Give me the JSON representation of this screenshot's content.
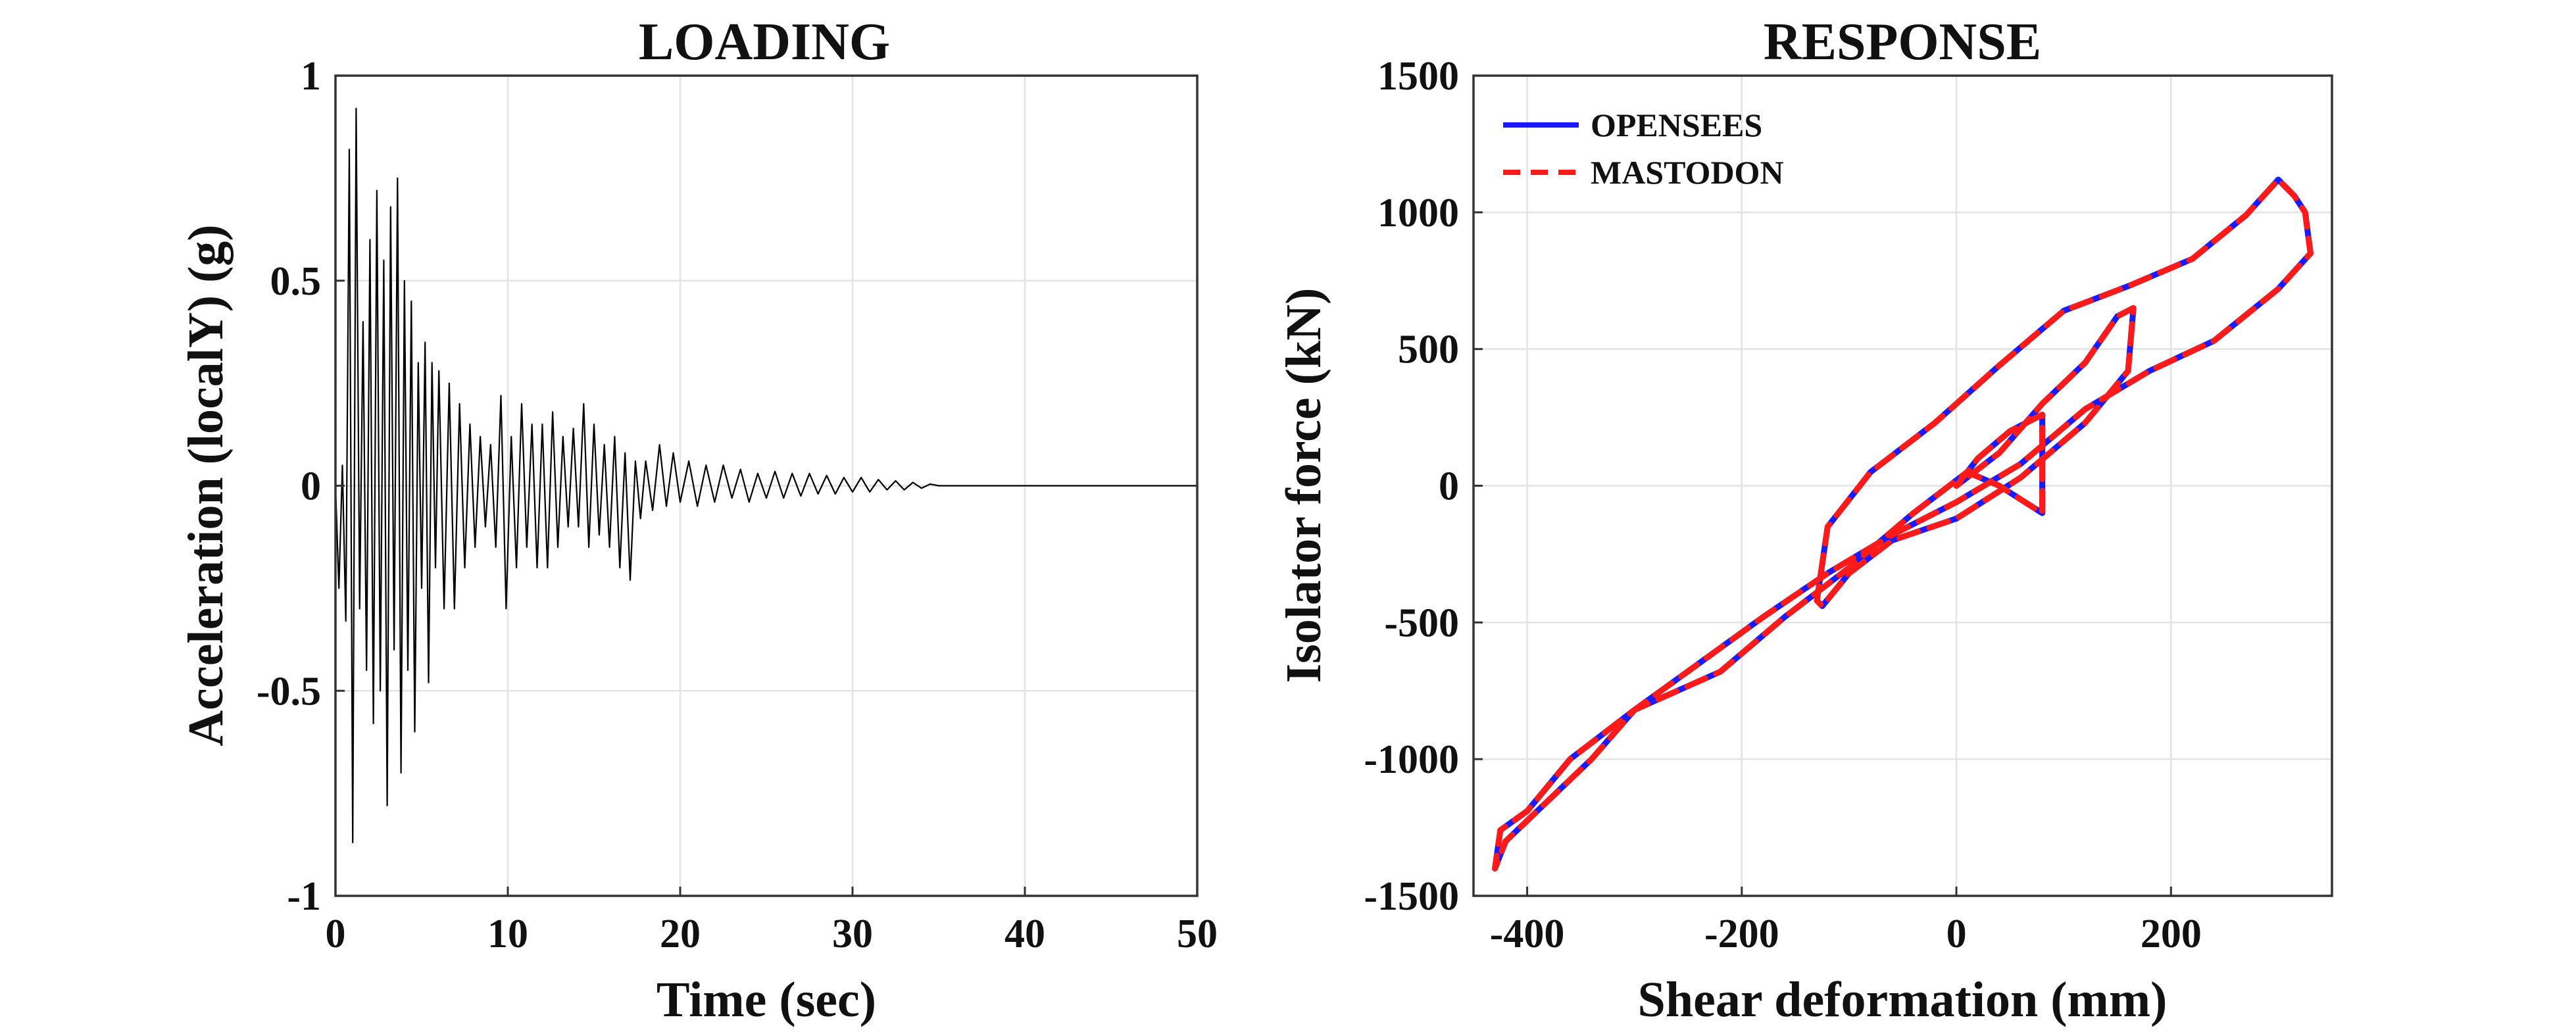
{
  "chart_data": [
    {
      "type": "line",
      "title": "LOADING",
      "xlabel": "Time (sec)",
      "ylabel": "Acceleration (localY) (g)",
      "xlim": [
        0,
        50
      ],
      "ylim": [
        -1,
        1
      ],
      "xticks": [
        0,
        10,
        20,
        30,
        40,
        50
      ],
      "xtick_labels": [
        "0",
        "10",
        "20",
        "30",
        "40",
        "50"
      ],
      "yticks": [
        -1,
        -0.5,
        0,
        0.5,
        1
      ],
      "ytick_labels": [
        "-1",
        "-0.5",
        "0",
        "0.5",
        "1"
      ],
      "grid": true,
      "series": [
        {
          "color": "#000000",
          "style": "solid",
          "x": [
            0,
            0.2,
            0.4,
            0.6,
            0.8,
            1.0,
            1.2,
            1.4,
            1.6,
            1.8,
            2.0,
            2.2,
            2.4,
            2.6,
            2.8,
            3.0,
            3.2,
            3.4,
            3.6,
            3.8,
            4.0,
            4.2,
            4.4,
            4.6,
            4.8,
            5.0,
            5.2,
            5.4,
            5.6,
            5.8,
            6.0,
            6.3,
            6.6,
            6.9,
            7.2,
            7.5,
            7.8,
            8.1,
            8.4,
            8.7,
            9.0,
            9.3,
            9.6,
            9.9,
            10.2,
            10.5,
            10.8,
            11.1,
            11.4,
            11.7,
            12.0,
            12.3,
            12.6,
            12.9,
            13.2,
            13.5,
            13.8,
            14.1,
            14.4,
            14.7,
            15.0,
            15.3,
            15.6,
            15.9,
            16.2,
            16.5,
            16.8,
            17.1,
            17.4,
            17.7,
            18.0,
            18.4,
            18.8,
            19.2,
            19.6,
            20.0,
            20.5,
            21.0,
            21.5,
            22.0,
            22.5,
            23.0,
            23.5,
            24.0,
            24.5,
            25.0,
            25.5,
            26.0,
            26.5,
            27.0,
            27.5,
            28.0,
            28.5,
            29.0,
            29.5,
            30.0,
            30.5,
            31.0,
            31.5,
            32.0,
            32.5,
            33.0,
            33.5,
            34.0,
            34.5,
            35.0,
            35.5,
            36.0,
            40.0,
            45.0,
            50.0
          ],
          "y": [
            0,
            -0.25,
            0.05,
            -0.33,
            0.82,
            -0.87,
            0.92,
            -0.3,
            0.4,
            -0.45,
            0.6,
            -0.58,
            0.72,
            -0.5,
            0.55,
            -0.78,
            0.68,
            -0.4,
            0.75,
            -0.7,
            0.5,
            -0.45,
            0.45,
            -0.6,
            0.3,
            -0.25,
            0.35,
            -0.48,
            0.3,
            -0.2,
            0.28,
            -0.3,
            0.25,
            -0.3,
            0.2,
            -0.2,
            0.15,
            -0.15,
            0.12,
            -0.1,
            0.1,
            -0.15,
            0.22,
            -0.3,
            0.12,
            -0.2,
            0.2,
            -0.15,
            0.15,
            -0.2,
            0.15,
            -0.2,
            0.18,
            -0.15,
            0.12,
            -0.1,
            0.14,
            -0.1,
            0.2,
            -0.15,
            0.15,
            -0.12,
            0.1,
            -0.15,
            0.12,
            -0.2,
            0.08,
            -0.23,
            0.06,
            -0.08,
            0.06,
            -0.06,
            0.1,
            -0.05,
            0.08,
            -0.04,
            0.06,
            -0.05,
            0.05,
            -0.04,
            0.05,
            -0.03,
            0.04,
            -0.04,
            0.03,
            -0.03,
            0.035,
            -0.03,
            0.03,
            -0.025,
            0.03,
            -0.02,
            0.025,
            -0.02,
            0.02,
            -0.015,
            0.02,
            -0.015,
            0.015,
            -0.01,
            0.012,
            -0.01,
            0.008,
            -0.006,
            0.004,
            0,
            0,
            0,
            0,
            0,
            0
          ]
        }
      ]
    },
    {
      "type": "line",
      "title": "RESPONSE",
      "xlabel": "Shear deformation (mm)",
      "ylabel": "Isolator force (kN)",
      "xlim": [
        -450,
        350
      ],
      "ylim": [
        -1500,
        1500
      ],
      "xticks": [
        -400,
        -200,
        0,
        200
      ],
      "xtick_labels": [
        "-400",
        "-200",
        "0",
        "200"
      ],
      "yticks": [
        -1500,
        -1000,
        -500,
        0,
        500,
        1000,
        1500
      ],
      "ytick_labels": [
        "-1500",
        "-1000",
        "-500",
        "0",
        "500",
        "1000",
        "1500"
      ],
      "grid": true,
      "legend": {
        "position": "top-left"
      },
      "series": [
        {
          "name": "OPENSEES",
          "color": "#1a1aff",
          "style": "solid",
          "x": [
            0,
            20,
            50,
            80,
            80,
            40,
            10,
            -40,
            -100,
            -160,
            -220,
            -300,
            -340,
            -380,
            -420,
            -430,
            -425,
            -400,
            -360,
            -300,
            -240,
            -180,
            -120,
            -60,
            0,
            60,
            120,
            180,
            240,
            300,
            330,
            325,
            315,
            300,
            270,
            220,
            160,
            100,
            40,
            -20,
            -80,
            -120,
            -130,
            -125,
            -100,
            -60,
            0,
            60,
            120,
            160,
            165,
            150,
            120,
            80,
            40,
            0
          ],
          "y": [
            0,
            100,
            200,
            260,
            -100,
            0,
            50,
            -100,
            -300,
            -480,
            -680,
            -820,
            -1000,
            -1150,
            -1300,
            -1400,
            -1260,
            -1190,
            -1000,
            -820,
            -650,
            -480,
            -320,
            -180,
            -60,
            80,
            280,
            420,
            530,
            720,
            850,
            1000,
            1060,
            1120,
            990,
            830,
            730,
            640,
            440,
            230,
            50,
            -150,
            -420,
            -440,
            -320,
            -200,
            -120,
            30,
            230,
            420,
            650,
            620,
            450,
            300,
            120,
            0
          ]
        },
        {
          "name": "MASTODON",
          "color": "#ff1a1a",
          "style": "dashed",
          "x": [
            0,
            20,
            50,
            80,
            80,
            40,
            10,
            -40,
            -100,
            -160,
            -220,
            -300,
            -340,
            -380,
            -420,
            -430,
            -425,
            -400,
            -360,
            -300,
            -240,
            -180,
            -120,
            -60,
            0,
            60,
            120,
            180,
            240,
            300,
            330,
            325,
            315,
            300,
            270,
            220,
            160,
            100,
            40,
            -20,
            -80,
            -120,
            -130,
            -125,
            -100,
            -60,
            0,
            60,
            120,
            160,
            165,
            150,
            120,
            80,
            40,
            0
          ],
          "y": [
            0,
            100,
            200,
            260,
            -100,
            0,
            50,
            -100,
            -300,
            -480,
            -680,
            -820,
            -1000,
            -1150,
            -1300,
            -1400,
            -1260,
            -1190,
            -1000,
            -820,
            -650,
            -480,
            -320,
            -180,
            -60,
            80,
            280,
            420,
            530,
            720,
            850,
            1000,
            1060,
            1120,
            990,
            830,
            730,
            640,
            440,
            230,
            50,
            -150,
            -420,
            -440,
            -320,
            -200,
            -120,
            30,
            230,
            420,
            650,
            620,
            450,
            300,
            120,
            0
          ]
        }
      ]
    }
  ]
}
